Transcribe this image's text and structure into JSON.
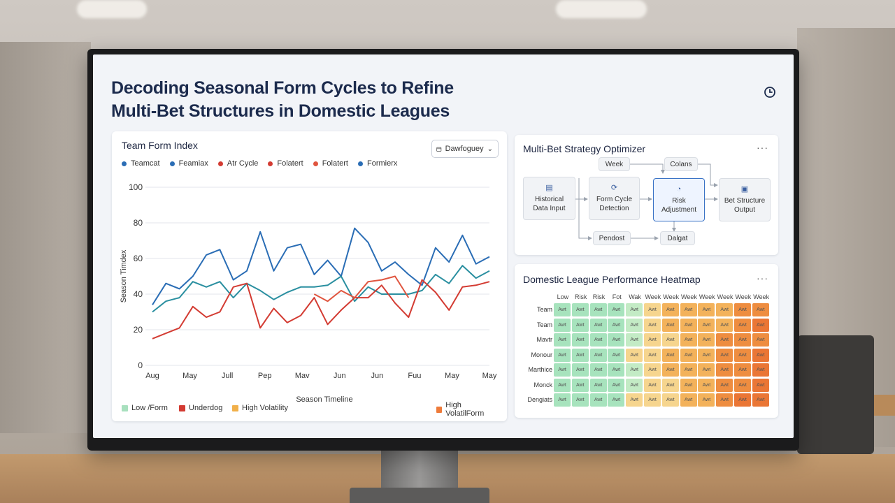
{
  "page": {
    "title_line1": "Decoding Seasonal Form Cycles to Refine",
    "title_line2": "Multi-Bet Structures in Domestic Leagues"
  },
  "form_chart": {
    "title": "Team Form Index",
    "dropdown_label": "Dawfoguey",
    "legend": [
      {
        "name": "Teamcat",
        "color": "#2a6db5"
      },
      {
        "name": "Feamiax",
        "color": "#2a6db5"
      },
      {
        "name": "Atr Cycle",
        "color": "#d33b32"
      },
      {
        "name": "Folatert",
        "color": "#d33b32"
      },
      {
        "name": "Folatert",
        "color": "#e0553f"
      },
      {
        "name": "Formierx",
        "color": "#2a6db5"
      }
    ],
    "bottom_legend": [
      {
        "label": "Low /Form",
        "color": "#a8e0be"
      },
      {
        "label": "Underdog",
        "color": "#d33b32"
      },
      {
        "label": "High Volatility",
        "color": "#f1b04a"
      },
      {
        "label": "High VolatilForm",
        "color": "#ee7b3a"
      }
    ]
  },
  "chart_data": {
    "type": "line",
    "title": "Team Form Index",
    "xlabel": "Season Timeline",
    "ylabel": "Season Timdex",
    "ylim": [
      0,
      100
    ],
    "yticks": [
      0,
      20,
      40,
      60,
      80,
      100
    ],
    "xtick_labels": [
      "Aug",
      "May",
      "Jull",
      "Pep",
      "Mav",
      "Jun",
      "Jun",
      "Fuu",
      "May",
      "May"
    ],
    "grid": true,
    "series": [
      {
        "color": "#2a6db5",
        "values": [
          34,
          46,
          43,
          50,
          62,
          65,
          48,
          53,
          75,
          53,
          66,
          68,
          51,
          59,
          50,
          77,
          69,
          53,
          58,
          51,
          45,
          66,
          58,
          73,
          57,
          61
        ]
      },
      {
        "color": "#2a8fa0",
        "values": [
          30,
          36,
          38,
          47,
          44,
          47,
          38,
          46,
          42,
          37,
          41,
          44,
          44,
          45,
          50,
          36,
          44,
          40,
          40,
          40,
          42,
          51,
          46,
          56,
          49,
          53
        ]
      },
      {
        "color": "#d33b32",
        "values": [
          15,
          18,
          21,
          33,
          27,
          30,
          44,
          46,
          21,
          32,
          24,
          28,
          38,
          23,
          31,
          38,
          38,
          45,
          35,
          27,
          48,
          41,
          31,
          44,
          45,
          47
        ]
      },
      {
        "color": "#e0553f",
        "values": [
          null,
          null,
          null,
          null,
          null,
          null,
          null,
          null,
          null,
          null,
          null,
          null,
          40,
          36,
          42,
          38,
          47,
          48,
          50,
          38,
          null,
          null,
          null,
          null,
          null,
          null
        ]
      }
    ]
  },
  "optimizer": {
    "title": "Multi-Bet Strategy Optimizer",
    "nodes": {
      "week": "Week",
      "colans": "Colans",
      "historical": [
        "Historical",
        "Data Input"
      ],
      "form_cycle": [
        "Form Cycle",
        "Detection"
      ],
      "risk": [
        "Risk",
        "Adjustment"
      ],
      "bet_structure": [
        "Bet Structure",
        "Output"
      ],
      "pendost": "Pendost",
      "dalgat": "Dalgat"
    }
  },
  "heatmap": {
    "title": "Domestic League Performance Heatmap",
    "columns": [
      "Low",
      "Risk",
      "Risk",
      "Fot",
      "Wak",
      "Week",
      "Week",
      "Week",
      "Week",
      "Week",
      "Week",
      "Week"
    ],
    "rows": [
      "Team",
      "Team",
      "Mavtr",
      "Monour",
      "Marthice",
      "Monck",
      "Dengiats"
    ],
    "cell_text": "Awt",
    "level_colors": [
      "#a7e3bd",
      "#c3ebc5",
      "#f6d58e",
      "#f3b25b",
      "#ee8d40",
      "#ea7635"
    ],
    "levels": [
      [
        0,
        0,
        0,
        0,
        1,
        2,
        3,
        3,
        3,
        3,
        4,
        4
      ],
      [
        0,
        0,
        0,
        0,
        1,
        2,
        3,
        3,
        3,
        3,
        4,
        5
      ],
      [
        0,
        0,
        0,
        0,
        1,
        2,
        2,
        3,
        3,
        4,
        4,
        4
      ],
      [
        0,
        0,
        0,
        0,
        2,
        2,
        3,
        3,
        3,
        4,
        4,
        5
      ],
      [
        0,
        0,
        0,
        0,
        1,
        2,
        3,
        3,
        3,
        4,
        4,
        5
      ],
      [
        0,
        0,
        0,
        0,
        1,
        2,
        2,
        3,
        3,
        4,
        4,
        5
      ],
      [
        0,
        0,
        0,
        0,
        2,
        2,
        2,
        3,
        3,
        4,
        5,
        5
      ]
    ]
  }
}
